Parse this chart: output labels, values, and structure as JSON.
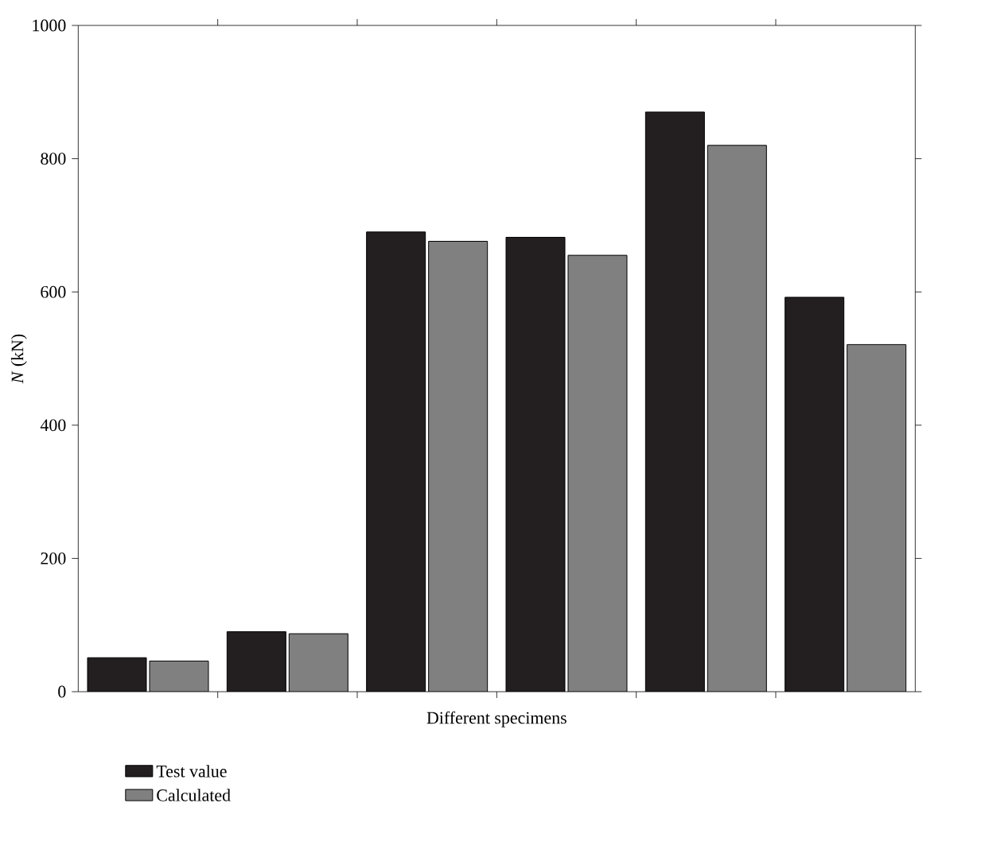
{
  "chart_data": {
    "type": "bar",
    "ylabel": "*N* (kN)",
    "xlabel": "Different specimens",
    "categories": [
      null,
      null,
      null,
      null,
      null,
      null
    ],
    "series": [
      {
        "name": "Test value",
        "color": "#231f20",
        "values": [
          51,
          90,
          690,
          682,
          870,
          592
        ]
      },
      {
        "name": "Calculated",
        "color": "#808080",
        "values": [
          46,
          87,
          676,
          655,
          820,
          521
        ]
      }
    ],
    "ylim": [
      0,
      1000
    ],
    "yticks": [
      0,
      200,
      400,
      600,
      800,
      1000
    ],
    "legend": "bottom left"
  }
}
